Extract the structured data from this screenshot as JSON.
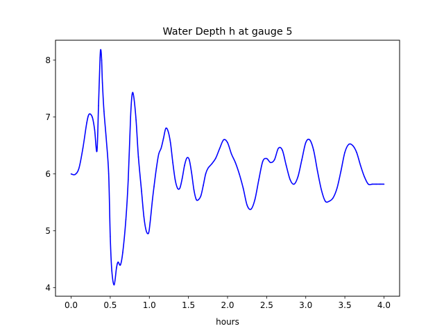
{
  "chart_data": {
    "type": "line",
    "title": "Water Depth h at gauge 5",
    "xlabel": "hours",
    "ylabel": "",
    "xlim": [
      -0.2,
      4.2
    ],
    "ylim": [
      3.85,
      8.35
    ],
    "xticks": [
      0.0,
      0.5,
      1.0,
      1.5,
      2.0,
      2.5,
      3.0,
      3.5,
      4.0
    ],
    "xtick_labels": [
      "0.0",
      "0.5",
      "1.0",
      "1.5",
      "2.0",
      "2.5",
      "3.0",
      "3.5",
      "4.0"
    ],
    "yticks": [
      4,
      5,
      6,
      7,
      8
    ],
    "ytick_labels": [
      "4",
      "5",
      "6",
      "7",
      "8"
    ],
    "grid": false,
    "legend": "none",
    "series": [
      {
        "color": "#0000ff",
        "x": [
          0.0,
          0.05,
          0.1,
          0.15,
          0.2,
          0.23,
          0.27,
          0.3,
          0.33,
          0.35,
          0.37,
          0.38,
          0.39,
          0.4,
          0.42,
          0.45,
          0.48,
          0.5,
          0.52,
          0.55,
          0.58,
          0.6,
          0.63,
          0.66,
          0.7,
          0.73,
          0.76,
          0.78,
          0.8,
          0.83,
          0.86,
          0.9,
          0.93,
          0.96,
          0.99,
          1.01,
          1.04,
          1.06,
          1.09,
          1.12,
          1.15,
          1.18,
          1.21,
          1.24,
          1.27,
          1.3,
          1.33,
          1.36,
          1.39,
          1.42,
          1.45,
          1.48,
          1.51,
          1.54,
          1.57,
          1.6,
          1.63,
          1.66,
          1.69,
          1.72,
          1.75,
          1.8,
          1.85,
          1.9,
          1.95,
          2.0,
          2.05,
          2.1,
          2.15,
          2.2,
          2.25,
          2.3,
          2.35,
          2.4,
          2.45,
          2.5,
          2.55,
          2.6,
          2.65,
          2.7,
          2.75,
          2.8,
          2.85,
          2.9,
          2.95,
          3.0,
          3.05,
          3.1,
          3.15,
          3.2,
          3.25,
          3.3,
          3.35,
          3.4,
          3.45,
          3.5,
          3.55,
          3.6,
          3.65,
          3.7,
          3.75,
          3.8,
          3.85,
          3.9,
          3.95,
          4.0
        ],
        "y": [
          6.0,
          5.99,
          6.1,
          6.45,
          6.9,
          7.05,
          7.0,
          6.78,
          6.4,
          7.2,
          8.05,
          8.18,
          8.0,
          7.6,
          7.1,
          6.6,
          6.0,
          4.9,
          4.3,
          4.05,
          4.35,
          4.45,
          4.4,
          4.62,
          5.2,
          5.9,
          7.0,
          7.4,
          7.36,
          6.95,
          6.3,
          5.7,
          5.25,
          5.0,
          4.96,
          5.15,
          5.55,
          5.78,
          6.1,
          6.35,
          6.45,
          6.62,
          6.8,
          6.75,
          6.55,
          6.2,
          5.9,
          5.75,
          5.75,
          5.92,
          6.15,
          6.28,
          6.25,
          6.02,
          5.72,
          5.55,
          5.55,
          5.62,
          5.8,
          6.0,
          6.1,
          6.18,
          6.28,
          6.45,
          6.6,
          6.55,
          6.35,
          6.2,
          6.0,
          5.75,
          5.45,
          5.38,
          5.55,
          5.9,
          6.22,
          6.27,
          6.2,
          6.25,
          6.45,
          6.42,
          6.15,
          5.9,
          5.82,
          5.95,
          6.25,
          6.55,
          6.6,
          6.42,
          6.05,
          5.72,
          5.52,
          5.52,
          5.58,
          5.75,
          6.05,
          6.38,
          6.52,
          6.5,
          6.38,
          6.15,
          5.95,
          5.82,
          5.82,
          5.82,
          5.82,
          5.82
        ]
      }
    ]
  }
}
